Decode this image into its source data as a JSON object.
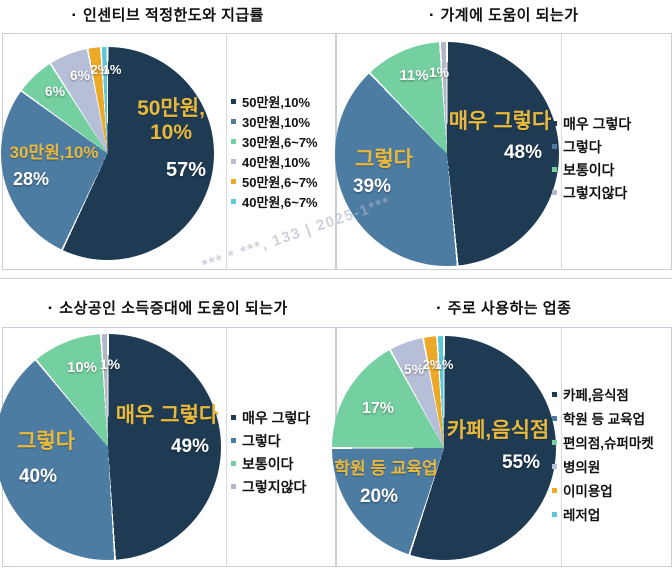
{
  "ui": {
    "title_bullet": "▪",
    "watermark": "*** * ***, 133 | 2025-1***"
  },
  "chart_data": [
    {
      "type": "pie",
      "title": "인센티브 적정한도와 지급률",
      "labels": [
        "50만원,10%",
        "30만원,10%",
        "30만원,6~7%",
        "40만원,10%",
        "50만원,6~7%",
        "40만원,6~7%"
      ],
      "values": [
        57,
        28,
        6,
        6,
        2,
        1
      ],
      "colors": [
        "#1f3b54",
        "#4d7ca3",
        "#74d0a0",
        "#b7bed8",
        "#eca928",
        "#5bc8da"
      ],
      "legend_position": "right",
      "callouts": [
        "50만원,\n10%",
        "57%",
        "30만원,10%",
        "28%",
        "6%",
        "6%",
        "2%",
        "1%"
      ]
    },
    {
      "type": "pie",
      "title": "가계에 도움이 되는가",
      "labels": [
        "매우 그렇다",
        "그렇다",
        "보통이다",
        "그렇지않다"
      ],
      "values": [
        48,
        39,
        11,
        1
      ],
      "colors": [
        "#1f3b54",
        "#4d7ca3",
        "#74d0a0",
        "#b2b8c6"
      ],
      "legend_position": "right",
      "callouts": [
        "매우 그렇다",
        "48%",
        "그렇다",
        "39%",
        "11%",
        "1%"
      ]
    },
    {
      "type": "pie",
      "title": "소상공인 소득증대에 도움이 되는가",
      "labels": [
        "매우 그렇다",
        "그렇다",
        "보통이다",
        "그렇지않다"
      ],
      "values": [
        49,
        40,
        10,
        1
      ],
      "colors": [
        "#1f3b54",
        "#4d7ca3",
        "#74d0a0",
        "#b2b8c6"
      ],
      "legend_position": "right",
      "callouts": [
        "매우 그렇다",
        "49%",
        "그렇다",
        "40%",
        "10%",
        "1%"
      ]
    },
    {
      "type": "pie",
      "title": "주로 사용하는 업종",
      "labels": [
        "카페,음식점",
        "학원 등 교육업",
        "편의점,슈퍼마켓",
        "병의원",
        "이미용업",
        "레저업"
      ],
      "values": [
        55,
        20,
        17,
        5,
        2,
        1
      ],
      "colors": [
        "#1f3b54",
        "#4d7ca3",
        "#74d0a0",
        "#b7bed8",
        "#eca928",
        "#5bc8da"
      ],
      "legend_position": "right",
      "callouts": [
        "카페,음식점",
        "55%",
        "학원 등 교육업",
        "20%",
        "17%",
        "5%",
        "2%",
        "1%"
      ]
    }
  ]
}
